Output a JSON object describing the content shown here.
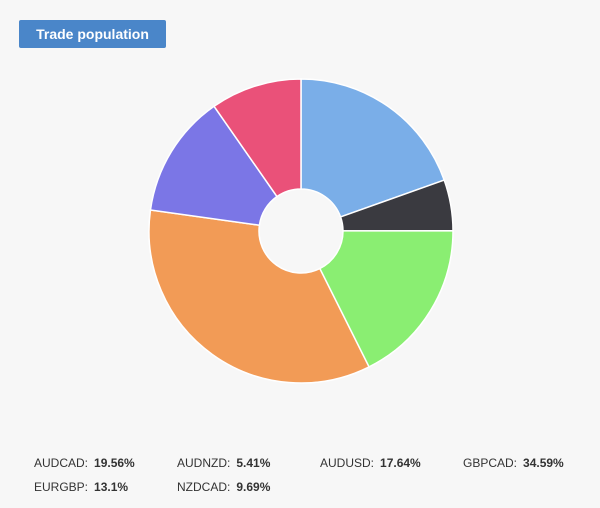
{
  "header": {
    "title": "Trade population"
  },
  "chart_data": {
    "type": "pie",
    "donut": true,
    "slices": [
      {
        "label": "AUDCAD",
        "value": 19.56,
        "display": "19.56%",
        "color": "#7aaee8"
      },
      {
        "label": "AUDNZD",
        "value": 5.41,
        "display": "5.41%",
        "color": "#3a3a40"
      },
      {
        "label": "AUDUSD",
        "value": 17.64,
        "display": "17.64%",
        "color": "#8aee72"
      },
      {
        "label": "GBPCAD",
        "value": 34.59,
        "display": "34.59%",
        "color": "#f29b56"
      },
      {
        "label": "EURGBP",
        "value": 13.1,
        "display": "13.1%",
        "color": "#7b76e6"
      },
      {
        "label": "NZDCAD",
        "value": 9.69,
        "display": "9.69%",
        "color": "#ea5179"
      }
    ],
    "legend_position": "bottom"
  }
}
